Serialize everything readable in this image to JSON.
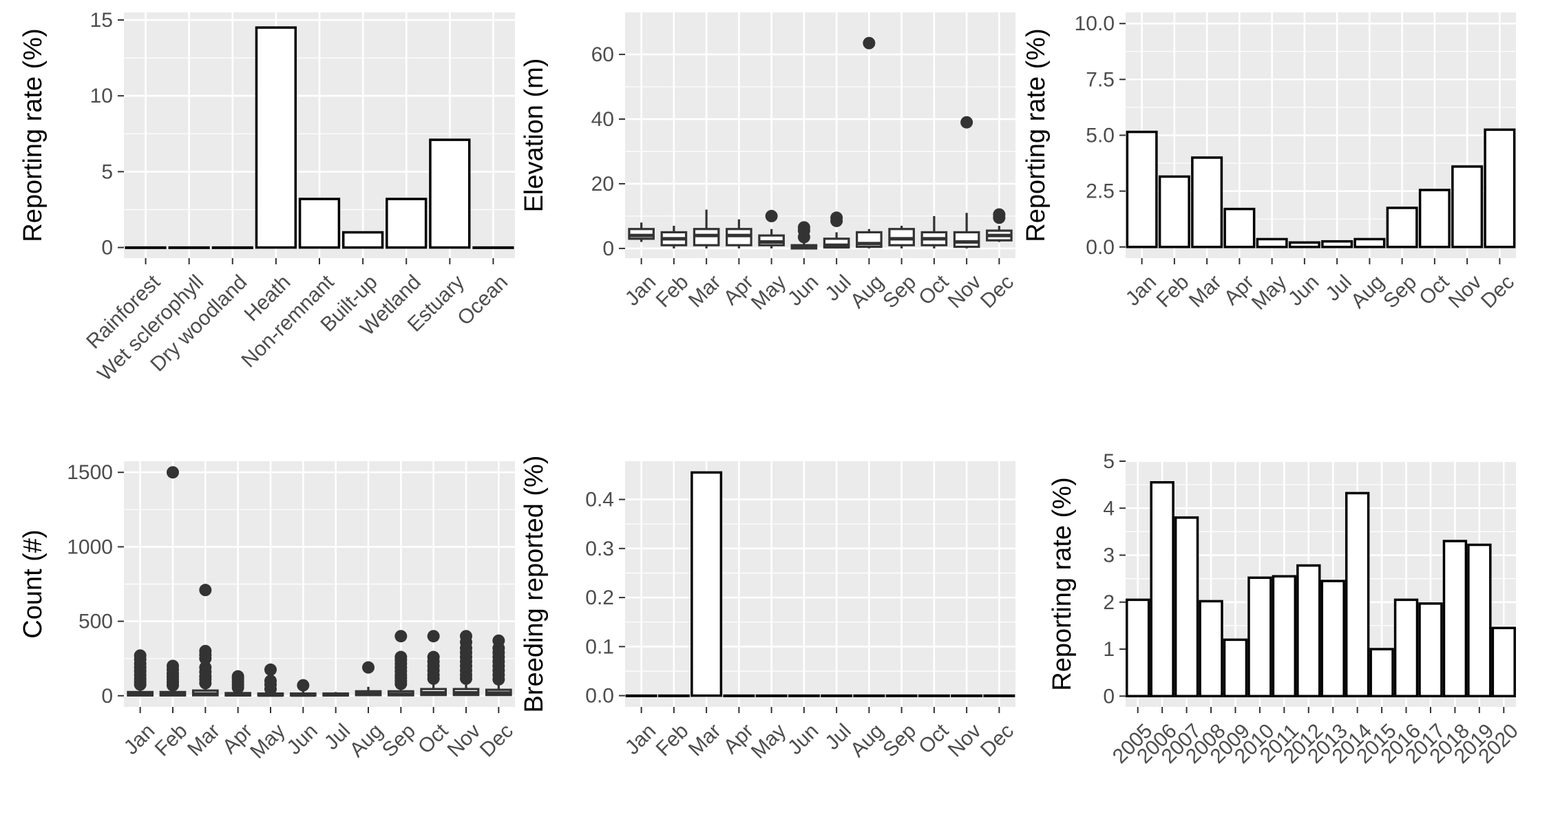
{
  "chart_data": [
    {
      "id": "habitat",
      "type": "bar",
      "ylabel": "Reporting rate (%)",
      "xlabel": "",
      "categories": [
        "Rainforest",
        "Wet sclerophyll",
        "Dry woodland",
        "Heath",
        "Non-remnant",
        "Built-up",
        "Wetland",
        "Estuary",
        "Ocean"
      ],
      "values": [
        0,
        0,
        0,
        14.5,
        3.2,
        1.0,
        3.2,
        7.1,
        0
      ],
      "ylim": [
        -0.7,
        15.5
      ],
      "yticks": [
        0,
        5,
        10,
        15
      ],
      "ytick_labels": [
        "0",
        "5",
        "10",
        "15"
      ],
      "xtick_rotation": 45,
      "grid": true
    },
    {
      "id": "elevation",
      "type": "box",
      "ylabel": "Elevation (m)",
      "xlabel": "",
      "categories": [
        "Jan",
        "Feb",
        "Mar",
        "Apr",
        "May",
        "Jun",
        "Jul",
        "Aug",
        "Sep",
        "Oct",
        "Nov",
        "Dec"
      ],
      "boxes": [
        {
          "min": 2,
          "q1": 3,
          "median": 4,
          "q3": 6,
          "max": 8,
          "outliers": []
        },
        {
          "min": 0,
          "q1": 1,
          "median": 3,
          "q3": 5,
          "max": 7,
          "outliers": []
        },
        {
          "min": 0,
          "q1": 1,
          "median": 4,
          "q3": 6,
          "max": 12,
          "outliers": []
        },
        {
          "min": 0,
          "q1": 1,
          "median": 4,
          "q3": 6,
          "max": 9,
          "outliers": []
        },
        {
          "min": 0,
          "q1": 1,
          "median": 2,
          "q3": 4,
          "max": 6,
          "outliers": [
            10
          ]
        },
        {
          "min": 0,
          "q1": 0,
          "median": 0.3,
          "q3": 1,
          "max": 2,
          "outliers": [
            3.5,
            5.5,
            6.5
          ]
        },
        {
          "min": 0,
          "q1": 0.3,
          "median": 1,
          "q3": 3,
          "max": 5,
          "outliers": [
            8.5,
            9.5
          ]
        },
        {
          "min": 0,
          "q1": 0.5,
          "median": 1.5,
          "q3": 5,
          "max": 6,
          "outliers": [
            63.5
          ]
        },
        {
          "min": 0,
          "q1": 1,
          "median": 3,
          "q3": 6,
          "max": 7,
          "outliers": []
        },
        {
          "min": 0,
          "q1": 1,
          "median": 3,
          "q3": 5,
          "max": 10,
          "outliers": []
        },
        {
          "min": 0,
          "q1": 0.5,
          "median": 2,
          "q3": 5,
          "max": 11,
          "outliers": [
            39
          ]
        },
        {
          "min": 2,
          "q1": 2.5,
          "median": 4,
          "q3": 5.5,
          "max": 7,
          "outliers": [
            9.5,
            10.5
          ]
        }
      ],
      "ylim": [
        -3,
        73
      ],
      "yticks": [
        0,
        20,
        40,
        60
      ],
      "ytick_labels": [
        "0",
        "20",
        "40",
        "60"
      ],
      "xtick_rotation": 45,
      "grid": true
    },
    {
      "id": "monthly_rate",
      "type": "bar",
      "ylabel": "Reporting rate (%)",
      "xlabel": "",
      "categories": [
        "Jan",
        "Feb",
        "Mar",
        "Apr",
        "May",
        "Jun",
        "Jul",
        "Aug",
        "Sep",
        "Oct",
        "Nov",
        "Dec"
      ],
      "values": [
        5.15,
        3.15,
        4.0,
        1.7,
        0.35,
        0.2,
        0.25,
        0.35,
        1.75,
        2.55,
        3.6,
        5.25
      ],
      "ylim": [
        -0.5,
        10.5
      ],
      "yticks": [
        0,
        2.5,
        5,
        7.5,
        10
      ],
      "ytick_labels": [
        "0.0",
        "2.5",
        "5.0",
        "7.5",
        "10.0"
      ],
      "xtick_rotation": 45,
      "grid": true
    },
    {
      "id": "count",
      "type": "box",
      "ylabel": "Count (#)",
      "xlabel": "",
      "categories": [
        "Jan",
        "Feb",
        "Mar",
        "Apr",
        "May",
        "Jun",
        "Jul",
        "Aug",
        "Sep",
        "Oct",
        "Nov",
        "Dec"
      ],
      "boxes": [
        {
          "min": 0,
          "q1": 2,
          "median": 8,
          "q3": 25,
          "max": 60,
          "outliers": [
            75,
            95,
            115,
            140,
            165,
            190,
            215,
            245,
            270
          ]
        },
        {
          "min": 0,
          "q1": 2,
          "median": 8,
          "q3": 25,
          "max": 55,
          "outliers": [
            70,
            90,
            110,
            130,
            150,
            175,
            200,
            1500
          ]
        },
        {
          "min": 0,
          "q1": 3,
          "median": 12,
          "q3": 35,
          "max": 70,
          "outliers": [
            85,
            110,
            130,
            160,
            190,
            250,
            275,
            300,
            710
          ]
        },
        {
          "min": 0,
          "q1": 2,
          "median": 6,
          "q3": 18,
          "max": 40,
          "outliers": [
            55,
            75,
            95,
            115,
            130
          ]
        },
        {
          "min": 0,
          "q1": 2,
          "median": 5,
          "q3": 15,
          "max": 30,
          "outliers": [
            45,
            75,
            100,
            175
          ]
        },
        {
          "min": 0,
          "q1": 2,
          "median": 5,
          "q3": 15,
          "max": 30,
          "outliers": [
            70
          ]
        },
        {
          "min": 0,
          "q1": 2,
          "median": 6,
          "q3": 15,
          "max": 25,
          "outliers": []
        },
        {
          "min": 0,
          "q1": 4,
          "median": 12,
          "q3": 30,
          "max": 60,
          "outliers": [
            190
          ]
        },
        {
          "min": 0,
          "q1": 3,
          "median": 10,
          "q3": 30,
          "max": 65,
          "outliers": [
            80,
            100,
            120,
            140,
            165,
            190,
            215,
            240,
            260,
            400
          ]
        },
        {
          "min": 0,
          "q1": 5,
          "median": 20,
          "q3": 45,
          "max": 95,
          "outliers": [
            115,
            140,
            170,
            200,
            230,
            260,
            400
          ]
        },
        {
          "min": 0,
          "q1": 5,
          "median": 20,
          "q3": 45,
          "max": 95,
          "outliers": [
            115,
            140,
            170,
            200,
            230,
            260,
            290,
            320,
            360,
            400
          ]
        },
        {
          "min": 0,
          "q1": 5,
          "median": 18,
          "q3": 40,
          "max": 90,
          "outliers": [
            110,
            140,
            170,
            200,
            230,
            260,
            290,
            320,
            370
          ]
        }
      ],
      "ylim": [
        -75,
        1575
      ],
      "yticks": [
        0,
        500,
        1000,
        1500
      ],
      "ytick_labels": [
        "0",
        "500",
        "1000",
        "1500"
      ],
      "xtick_rotation": 45,
      "grid": true
    },
    {
      "id": "breeding",
      "type": "bar",
      "ylabel": "Breeding reported (%)",
      "xlabel": "",
      "categories": [
        "Jan",
        "Feb",
        "Mar",
        "Apr",
        "May",
        "Jun",
        "Jul",
        "Aug",
        "Sep",
        "Oct",
        "Nov",
        "Dec"
      ],
      "values": [
        0,
        0,
        0.455,
        0,
        0,
        0,
        0,
        0,
        0,
        0,
        0,
        0
      ],
      "ylim": [
        -0.023,
        0.478
      ],
      "yticks": [
        0,
        0.1,
        0.2,
        0.3,
        0.4
      ],
      "ytick_labels": [
        "0.0",
        "0.1",
        "0.2",
        "0.3",
        "0.4"
      ],
      "xtick_rotation": 45,
      "grid": true
    },
    {
      "id": "yearly_rate",
      "type": "bar",
      "ylabel": "Reporting rate (%)",
      "xlabel": "",
      "categories": [
        "2005",
        "2006",
        "2007",
        "2008",
        "2009",
        "2010",
        "2011",
        "2012",
        "2013",
        "2014",
        "2015",
        "2016",
        "2017",
        "2018",
        "2019",
        "2020"
      ],
      "values": [
        2.05,
        4.55,
        3.8,
        2.02,
        1.2,
        2.52,
        2.55,
        2.78,
        2.45,
        4.32,
        1.0,
        2.05,
        1.97,
        3.3,
        3.22,
        1.45
      ],
      "ylim": [
        -0.23,
        5.0
      ],
      "yticks": [
        0,
        1,
        2,
        3,
        4,
        5
      ],
      "ytick_labels": [
        "0",
        "1",
        "2",
        "3",
        "4",
        "5"
      ],
      "xtick_rotation": 45,
      "grid": true
    }
  ]
}
